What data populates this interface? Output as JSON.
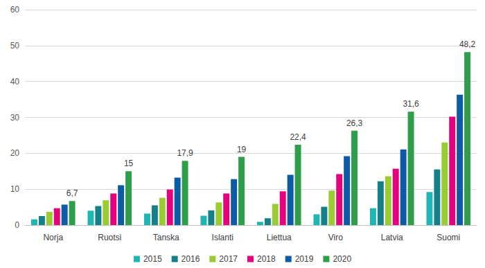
{
  "chart_data": {
    "type": "bar",
    "categories": [
      "Norja",
      "Ruotsi",
      "Tanska",
      "Islanti",
      "Liettua",
      "Viro",
      "Latvia",
      "Suomi"
    ],
    "series": [
      {
        "name": "2015",
        "color": "#1fb5b5",
        "values": [
          1.6,
          4.0,
          3.2,
          2.6,
          0.9,
          3.0,
          4.7,
          9.2
        ]
      },
      {
        "name": "2016",
        "color": "#16808a",
        "values": [
          2.5,
          5.3,
          5.5,
          4.1,
          1.9,
          5.1,
          12.2,
          15.5
        ]
      },
      {
        "name": "2017",
        "color": "#99cc33",
        "values": [
          3.7,
          6.9,
          7.6,
          6.3,
          5.9,
          9.6,
          13.6,
          23.0
        ]
      },
      {
        "name": "2018",
        "color": "#e5007d",
        "values": [
          4.7,
          8.8,
          9.9,
          8.8,
          9.4,
          14.2,
          15.7,
          30.2
        ]
      },
      {
        "name": "2019",
        "color": "#0d5aa7",
        "values": [
          5.7,
          11.1,
          13.2,
          12.8,
          14.0,
          19.2,
          21.1,
          36.3
        ]
      },
      {
        "name": "2020",
        "color": "#2f9e4a",
        "values": [
          6.7,
          15,
          17.9,
          19,
          22.4,
          26.3,
          31.6,
          48.2
        ],
        "data_labels": true,
        "value_labels": [
          "6,7",
          "15",
          "17,9",
          "19",
          "22,4",
          "26,3",
          "31,6",
          "48,2"
        ]
      }
    ],
    "ylim": [
      0,
      60
    ],
    "yticks": [
      0,
      10,
      20,
      30,
      40,
      50,
      60
    ],
    "grid": true,
    "legend": "bottom"
  }
}
